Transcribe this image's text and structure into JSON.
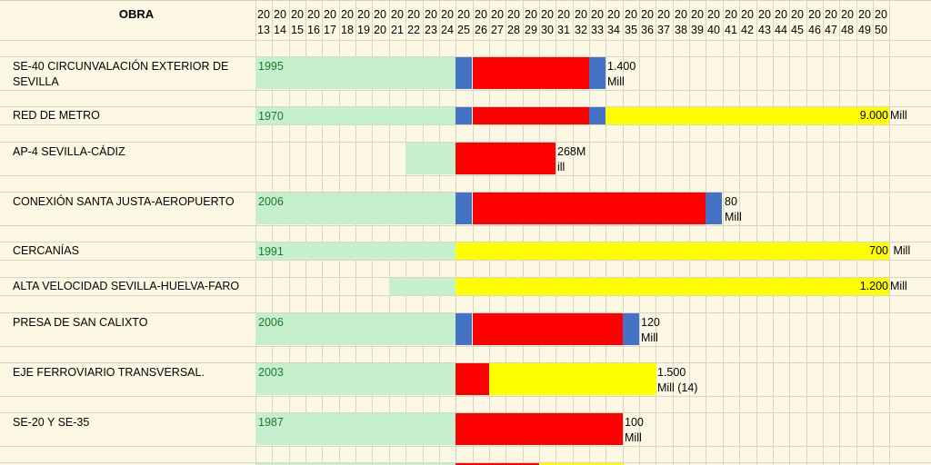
{
  "header": {
    "obra_label": "OBRA",
    "years": [
      [
        "20",
        "13"
      ],
      [
        "20",
        "14"
      ],
      [
        "20",
        "15"
      ],
      [
        "20",
        "16"
      ],
      [
        "20",
        "17"
      ],
      [
        "20",
        "18"
      ],
      [
        "20",
        "19"
      ],
      [
        "20",
        "20"
      ],
      [
        "20",
        "21"
      ],
      [
        "20",
        "22"
      ],
      [
        "20",
        "23"
      ],
      [
        "20",
        "24"
      ],
      [
        "20",
        "25"
      ],
      [
        "20",
        "26"
      ],
      [
        "20",
        "27"
      ],
      [
        "20",
        "28"
      ],
      [
        "20",
        "29"
      ],
      [
        "20",
        "30"
      ],
      [
        "20",
        "31"
      ],
      [
        "20",
        "32"
      ],
      [
        "20",
        "33"
      ],
      [
        "20",
        "34"
      ],
      [
        "20",
        "35"
      ],
      [
        "20",
        "36"
      ],
      [
        "20",
        "37"
      ],
      [
        "20",
        "38"
      ],
      [
        "20",
        "39"
      ],
      [
        "20",
        "40"
      ],
      [
        "20",
        "41"
      ],
      [
        "20",
        "42"
      ],
      [
        "20",
        "43"
      ],
      [
        "20",
        "44"
      ],
      [
        "20",
        "45"
      ],
      [
        "20",
        "46"
      ],
      [
        "20",
        "47"
      ],
      [
        "20",
        "48"
      ],
      [
        "20",
        "49"
      ],
      [
        "20",
        "50"
      ]
    ]
  },
  "colors": {
    "background": "#fdf8e3",
    "grid": "#d9d5c4",
    "past": "#c6efce",
    "blue": "#4472c4",
    "red": "#ff0000",
    "yellow": "#ffff00",
    "start_year_text": "#1b7a2a"
  },
  "rows": [
    {
      "name": "SE-40 CIRCUNVALACIÓN EXTERIOR DE SEVILLA",
      "start_year": "1995",
      "segments": [
        {
          "from": 2013,
          "to": 2024,
          "color": "past"
        },
        {
          "from": 2025,
          "to": 2025,
          "color": "blue"
        },
        {
          "from": 2026,
          "to": 2032,
          "color": "red"
        },
        {
          "from": 2033,
          "to": 2033,
          "color": "blue"
        }
      ],
      "cost": "1.400\nMill",
      "cost_after": 2033
    },
    {
      "name": "RED DE METRO",
      "start_year": "1970",
      "segments": [
        {
          "from": 2013,
          "to": 2024,
          "color": "past"
        },
        {
          "from": 2025,
          "to": 2025,
          "color": "blue"
        },
        {
          "from": 2026,
          "to": 2032,
          "color": "red"
        },
        {
          "from": 2033,
          "to": 2033,
          "color": "blue"
        },
        {
          "from": 2034,
          "to": 2050,
          "color": "yellow"
        }
      ],
      "cost": "9.000",
      "cost_suffix": "Mill",
      "cost_inside_end": 2050
    },
    {
      "name": "AP-4 SEVILLA-CÁDIZ",
      "start_year": "",
      "segments": [
        {
          "from": 2022,
          "to": 2024,
          "color": "past"
        },
        {
          "from": 2025,
          "to": 2030,
          "color": "red"
        }
      ],
      "cost": "268M\nill",
      "cost_after": 2030
    },
    {
      "name": "CONEXIÓN SANTA JUSTA-AEROPUERTO",
      "start_year": "2006",
      "segments": [
        {
          "from": 2013,
          "to": 2024,
          "color": "past"
        },
        {
          "from": 2025,
          "to": 2025,
          "color": "blue"
        },
        {
          "from": 2026,
          "to": 2039,
          "color": "red"
        },
        {
          "from": 2040,
          "to": 2040,
          "color": "blue"
        }
      ],
      "cost": "80\nMill",
      "cost_after": 2040
    },
    {
      "name": "CERCANÍAS",
      "start_year": "1991",
      "segments": [
        {
          "from": 2013,
          "to": 2024,
          "color": "past"
        },
        {
          "from": 2025,
          "to": 2050,
          "color": "yellow"
        }
      ],
      "cost": "700",
      "cost_suffix": " Mill",
      "cost_inside_end": 2050
    },
    {
      "name": "ALTA VELOCIDAD SEVILLA-HUELVA-FARO",
      "start_year": "",
      "segments": [
        {
          "from": 2021,
          "to": 2024,
          "color": "past"
        },
        {
          "from": 2025,
          "to": 2050,
          "color": "yellow"
        }
      ],
      "cost": "1.200",
      "cost_suffix": "Mill",
      "cost_inside_end": 2050
    },
    {
      "name": "PRESA DE SAN CALIXTO",
      "start_year": "2006",
      "segments": [
        {
          "from": 2013,
          "to": 2024,
          "color": "past"
        },
        {
          "from": 2025,
          "to": 2025,
          "color": "blue"
        },
        {
          "from": 2026,
          "to": 2034,
          "color": "red"
        },
        {
          "from": 2035,
          "to": 2035,
          "color": "blue"
        }
      ],
      "cost": "120\nMill",
      "cost_after": 2035
    },
    {
      "name": "EJE FERROVIARIO TRANSVERSAL.",
      "start_year": "2003",
      "segments": [
        {
          "from": 2013,
          "to": 2024,
          "color": "past"
        },
        {
          "from": 2025,
          "to": 2026,
          "color": "red"
        },
        {
          "from": 2027,
          "to": 2036,
          "color": "yellow"
        }
      ],
      "cost": "1.500\nMill (14)",
      "cost_after": 2036
    },
    {
      "name": "SE-20 Y SE-35",
      "start_year": "1987",
      "segments": [
        {
          "from": 2013,
          "to": 2024,
          "color": "past"
        },
        {
          "from": 2025,
          "to": 2034,
          "color": "red"
        }
      ],
      "cost": "100\nMill",
      "cost_after": 2034
    },
    {
      "name": "",
      "start_year": "",
      "segments": [
        {
          "from": 2013,
          "to": 2024,
          "color": "past"
        },
        {
          "from": 2025,
          "to": 2029,
          "color": "red"
        },
        {
          "from": 2030,
          "to": 2034,
          "color": "yellow"
        }
      ],
      "cost": ""
    }
  ]
}
